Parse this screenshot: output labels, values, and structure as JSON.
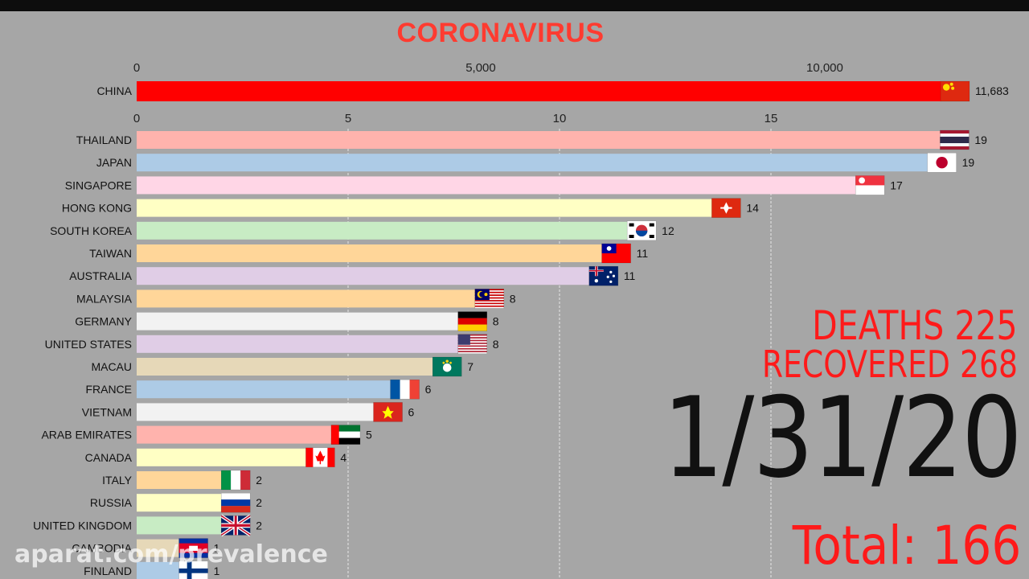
{
  "title": "CORONAVIRUS",
  "stats": {
    "deaths": "DEATHS 225",
    "recovered": "RECOVERED 268",
    "date": "1/31/20",
    "total": "Total: 166"
  },
  "watermark": "aparat.com/prevalence",
  "colors": {
    "background": "#a6a6a6",
    "title": "#ff3b30",
    "stats": "#ff1a1a",
    "date": "#111111"
  },
  "chart_data": [
    {
      "type": "bar",
      "orientation": "horizontal",
      "x_ticks": [
        "0",
        "5,000",
        "10,000"
      ],
      "xlim": [
        0,
        11683
      ],
      "categories": [
        "CHINA"
      ],
      "values": [
        11683
      ],
      "value_labels": [
        "11,683"
      ],
      "colors": [
        "#ff0000"
      ],
      "flags": [
        "china"
      ]
    },
    {
      "type": "bar",
      "orientation": "horizontal",
      "x_ticks": [
        "0",
        "5",
        "10",
        "15"
      ],
      "xlim": [
        0,
        19
      ],
      "grid": true,
      "categories": [
        "THAILAND",
        "JAPAN",
        "SINGAPORE",
        "HONG KONG",
        "SOUTH KOREA",
        "TAIWAN",
        "AUSTRALIA",
        "MALAYSIA",
        "GERMANY",
        "UNITED STATES",
        "MACAU",
        "FRANCE",
        "VIETNAM",
        "ARAB EMIRATES",
        "CANADA",
        "ITALY",
        "RUSSIA",
        "UNITED KINGDOM",
        "CAMBODIA",
        "FINLAND"
      ],
      "values": [
        19,
        19,
        17,
        14,
        12,
        11,
        11,
        8,
        8,
        8,
        7,
        6,
        6,
        5,
        4,
        2,
        2,
        2,
        1,
        1
      ],
      "colors": [
        "#ffb3ad",
        "#adcbe6",
        "#ffd6e6",
        "#ffffc4",
        "#c8ecc4",
        "#ffd699",
        "#e0cde6",
        "#ffd699",
        "#f2f2f2",
        "#e0cde6",
        "#e6d8b8",
        "#adcbe6",
        "#f2f2f2",
        "#ffb3ad",
        "#ffffc4",
        "#ffd699",
        "#ffffc4",
        "#c8ecc4",
        "#e6d8b8",
        "#adcbe6"
      ],
      "bar_ends": [
        19,
        18.7,
        17,
        13.6,
        11.6,
        11,
        10.7,
        8,
        7.6,
        7.6,
        7,
        6,
        5.6,
        4.6,
        4,
        2,
        2,
        2,
        1,
        1
      ],
      "flags": [
        "thailand",
        "japan",
        "singapore",
        "hongkong",
        "southkorea",
        "taiwan",
        "australia",
        "malaysia",
        "germany",
        "usa",
        "macau",
        "france",
        "vietnam",
        "uae",
        "canada",
        "italy",
        "russia",
        "uk",
        "cambodia",
        "finland"
      ]
    }
  ]
}
